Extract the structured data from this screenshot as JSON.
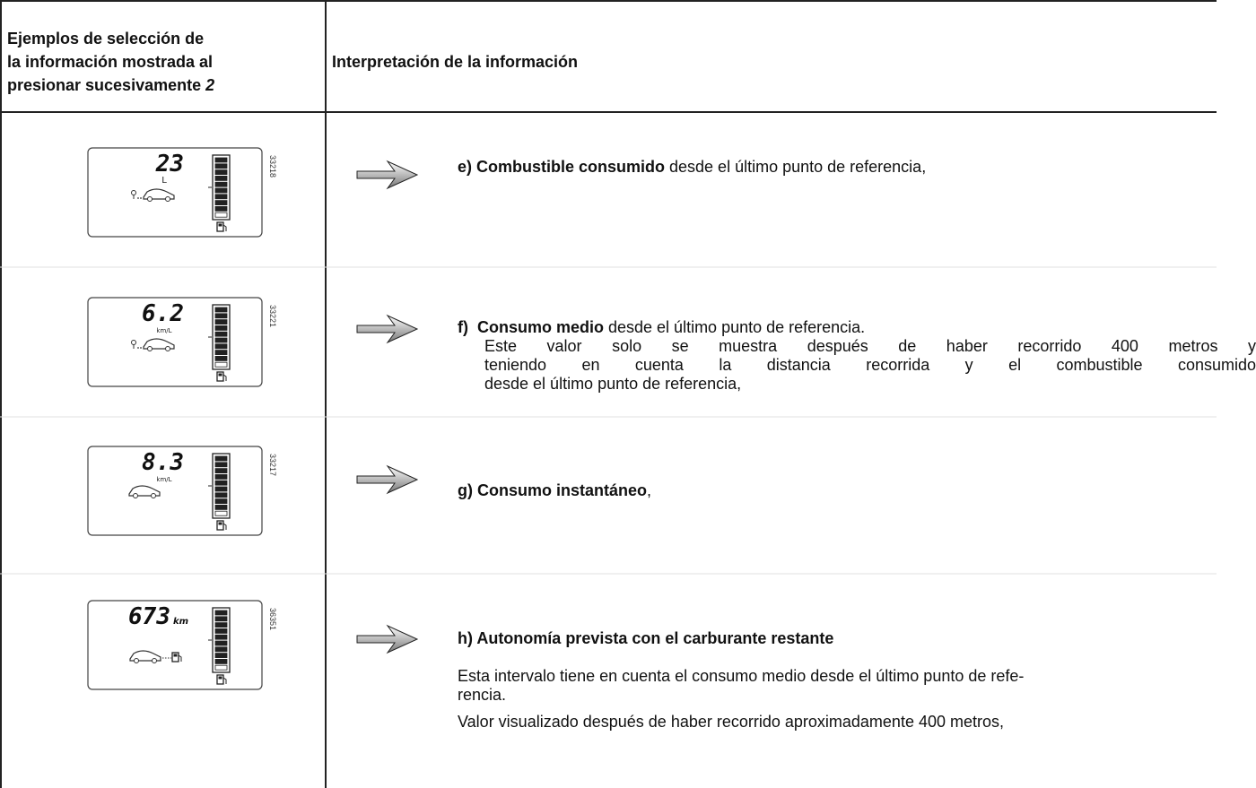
{
  "header": {
    "left_lines": [
      "Ejemplos de selección de",
      "la información mostrada al",
      "presionar sucesivamente"
    ],
    "left_key": "2",
    "right": "Interpretación de la información"
  },
  "rows": [
    {
      "display": {
        "value": "23",
        "unit": "L",
        "code": "33218"
      },
      "label": "e) Combustible consumido",
      "text": " desde el último punto de referencia,"
    },
    {
      "display": {
        "value": "6.2",
        "unit": "km/L",
        "code": "33221"
      },
      "label": "f)  Consumo medio",
      "text": " desde el último punto de referencia.",
      "lines": [
        "Este valor solo se muestra después de haber recorrido 400 metros y",
        "teniendo en cuenta la distancia recorrida y el combustible consumido",
        "desde el último punto de referencia,"
      ]
    },
    {
      "display": {
        "value": "8.3",
        "unit": "km/L",
        "code": "33217"
      },
      "label": "g) Consumo instantáneo",
      "text": ","
    },
    {
      "display": {
        "value": "673",
        "unit": "km",
        "code": "36351"
      },
      "label": "h) Autonomía prevista con el carburante restante",
      "lines": [
        "Esta intervalo tiene en cuenta el consumo medio desde el último punto de refe-",
        "rencia.",
        "Valor visualizado después de haber recorrido aproximadamente 400 metros,"
      ]
    }
  ]
}
